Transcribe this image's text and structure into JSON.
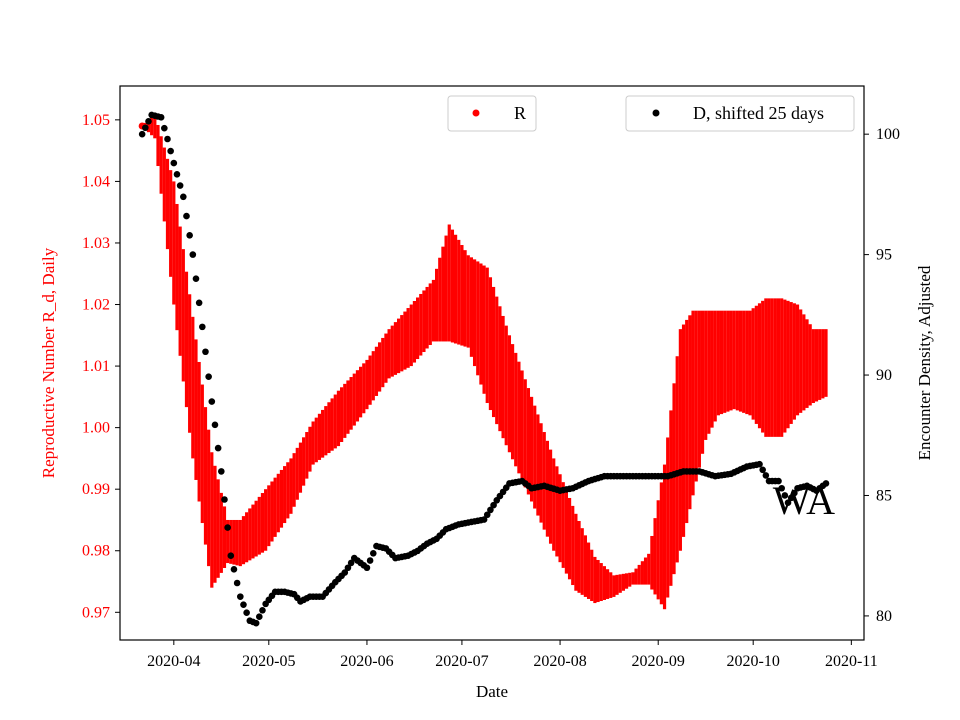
{
  "chart_data": {
    "type": "line",
    "title": "",
    "annotation": "WA",
    "xlabel": "Date",
    "ylabel_left": "Reproductive Number R_d, Daily",
    "ylabel_right": "Encounter Density, Adjusted",
    "xlim": [
      "2020-03-15",
      "2020-11-05"
    ],
    "ylim_left": [
      0.9655,
      1.0555
    ],
    "ylim_right": [
      79.0,
      102.0
    ],
    "x_ticks": [
      "2020-04",
      "2020-05",
      "2020-06",
      "2020-07",
      "2020-08",
      "2020-09",
      "2020-10",
      "2020-11"
    ],
    "y_ticks_left": [
      "0.97",
      "0.98",
      "0.99",
      "1.00",
      "1.01",
      "1.02",
      "1.03",
      "1.04",
      "1.05"
    ],
    "y_ticks_right": [
      "80",
      "85",
      "90",
      "95",
      "100"
    ],
    "colors": {
      "R": "#ff0000",
      "D": "#000000",
      "left_axis": "#ff0000",
      "right_axis": "#000000"
    },
    "legend": [
      {
        "label": "R",
        "marker": "red-dot",
        "placement": "upper-center"
      },
      {
        "label": "D, shifted 25 days",
        "marker": "black-dot",
        "placement": "upper-right"
      }
    ],
    "series": [
      {
        "name": "R",
        "axis": "left",
        "style": "oscillating band (red)",
        "x": [
          "2020-03-22",
          "2020-03-26",
          "2020-04-01",
          "2020-04-07",
          "2020-04-13",
          "2020-04-18",
          "2020-04-22",
          "2020-04-30",
          "2020-05-08",
          "2020-05-15",
          "2020-05-23",
          "2020-06-01",
          "2020-06-08",
          "2020-06-15",
          "2020-06-22",
          "2020-06-27",
          "2020-07-03",
          "2020-07-09",
          "2020-07-16",
          "2020-07-23",
          "2020-07-30",
          "2020-08-06",
          "2020-08-12",
          "2020-08-18",
          "2020-08-24",
          "2020-08-29",
          "2020-09-03",
          "2020-09-08",
          "2020-09-12",
          "2020-09-16",
          "2020-09-20",
          "2020-09-25",
          "2020-09-30",
          "2020-10-05",
          "2020-10-10",
          "2020-10-15",
          "2020-10-20",
          "2020-10-24"
        ],
        "low": [
          1.049,
          1.047,
          1.02,
          0.995,
          0.974,
          0.978,
          0.9775,
          0.98,
          0.986,
          0.994,
          0.997,
          1.003,
          1.008,
          1.01,
          1.014,
          1.014,
          1.013,
          1.004,
          0.996,
          0.988,
          0.98,
          0.9735,
          0.9715,
          0.9725,
          0.9745,
          0.9745,
          0.9705,
          0.98,
          0.989,
          0.998,
          1.002,
          1.003,
          1.002,
          0.9985,
          0.9985,
          1.002,
          1.004,
          1.005
        ],
        "high": [
          1.049,
          1.051,
          1.04,
          1.018,
          0.996,
          0.985,
          0.985,
          0.99,
          0.995,
          1.001,
          1.006,
          1.011,
          1.016,
          1.02,
          1.024,
          1.033,
          1.028,
          1.026,
          1.015,
          1.005,
          0.995,
          0.986,
          0.979,
          0.976,
          0.9765,
          0.9795,
          0.994,
          1.016,
          1.019,
          1.019,
          1.019,
          1.019,
          1.019,
          1.021,
          1.021,
          1.02,
          1.016,
          1.016
        ]
      },
      {
        "name": "D, shifted 25 days",
        "axis": "right",
        "style": "scatter (black dots)",
        "x": [
          "2020-03-22",
          "2020-03-25",
          "2020-03-28",
          "2020-03-30",
          "2020-04-01",
          "2020-04-04",
          "2020-04-07",
          "2020-04-10",
          "2020-04-13",
          "2020-04-16",
          "2020-04-19",
          "2020-04-22",
          "2020-04-25",
          "2020-04-27",
          "2020-04-30",
          "2020-05-03",
          "2020-05-06",
          "2020-05-09",
          "2020-05-11",
          "2020-05-14",
          "2020-05-18",
          "2020-05-22",
          "2020-05-25",
          "2020-05-28",
          "2020-06-01",
          "2020-06-04",
          "2020-06-07",
          "2020-06-10",
          "2020-06-14",
          "2020-06-17",
          "2020-06-20",
          "2020-06-23",
          "2020-06-26",
          "2020-06-30",
          "2020-07-04",
          "2020-07-08",
          "2020-07-12",
          "2020-07-16",
          "2020-07-20",
          "2020-07-23",
          "2020-07-27",
          "2020-08-01",
          "2020-08-05",
          "2020-08-10",
          "2020-08-15",
          "2020-08-20",
          "2020-08-25",
          "2020-08-30",
          "2020-09-04",
          "2020-09-09",
          "2020-09-14",
          "2020-09-19",
          "2020-09-24",
          "2020-09-29",
          "2020-10-03",
          "2020-10-06",
          "2020-10-09",
          "2020-10-12",
          "2020-10-15",
          "2020-10-18",
          "2020-10-21",
          "2020-10-24"
        ],
        "y": [
          100.0,
          100.8,
          100.7,
          99.8,
          98.8,
          97.4,
          95.0,
          92.0,
          88.9,
          86.0,
          82.5,
          80.8,
          79.8,
          79.7,
          80.5,
          81.0,
          81.0,
          80.9,
          80.6,
          80.8,
          80.8,
          81.4,
          81.8,
          82.4,
          82.0,
          82.9,
          82.8,
          82.4,
          82.5,
          82.7,
          83.0,
          83.2,
          83.6,
          83.8,
          83.9,
          84.0,
          84.8,
          85.5,
          85.6,
          85.3,
          85.4,
          85.2,
          85.3,
          85.6,
          85.8,
          85.8,
          85.8,
          85.8,
          85.8,
          86.0,
          86.0,
          85.8,
          85.9,
          86.2,
          86.3,
          85.6,
          85.6,
          84.7,
          85.3,
          85.4,
          85.2,
          85.5
        ]
      }
    ]
  }
}
